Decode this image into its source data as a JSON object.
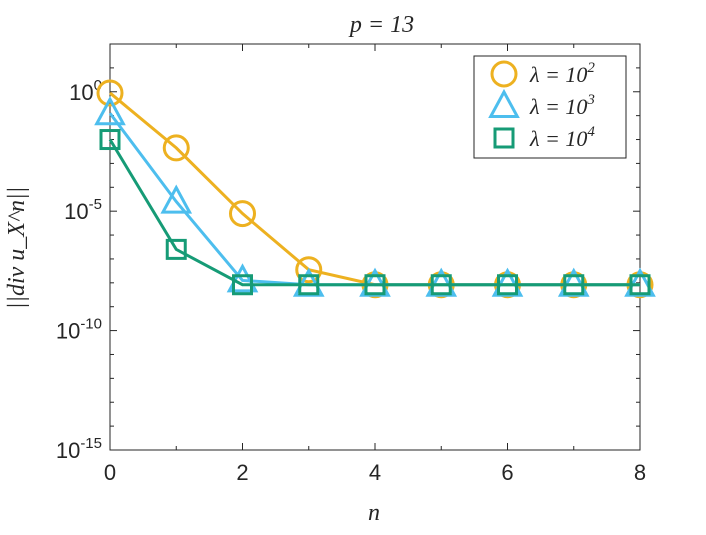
{
  "chart_data": {
    "type": "line",
    "title": "p = 13",
    "xlabel": "n",
    "ylabel": "||div u_X^n||",
    "x": [
      0,
      1,
      2,
      3,
      4,
      5,
      6,
      7,
      8
    ],
    "xlim": [
      0,
      8
    ],
    "ylim_exponent": [
      -15,
      2
    ],
    "yscale": "log",
    "grid": false,
    "legend_position": "top-right",
    "xticks": [
      "0",
      "2",
      "4",
      "6",
      "8"
    ],
    "xtick_values": [
      0,
      2,
      4,
      6,
      8
    ],
    "yticks": [
      {
        "base": "10",
        "exp": "0",
        "value": 0
      },
      {
        "base": "10",
        "exp": "-5",
        "value": -5
      },
      {
        "base": "10",
        "exp": "-10",
        "value": -10
      },
      {
        "base": "10",
        "exp": "-15",
        "value": -15
      }
    ],
    "series": [
      {
        "name": "λ = 10^2",
        "legend_base": "λ = 10",
        "legend_exp": "2",
        "marker": "circle",
        "color": "#EDB120",
        "values_log10": [
          -0.05,
          -2.35,
          -5.1,
          -7.45,
          -8.08,
          -8.08,
          -8.08,
          -8.08,
          -8.08
        ]
      },
      {
        "name": "λ = 10^3",
        "legend_base": "λ = 10",
        "legend_exp": "3",
        "marker": "triangle",
        "color": "#4DBEEE",
        "values_log10": [
          -0.9,
          -4.6,
          -7.9,
          -8.08,
          -8.08,
          -8.08,
          -8.08,
          -8.08,
          -8.08
        ]
      },
      {
        "name": "λ = 10^4",
        "legend_base": "λ = 10",
        "legend_exp": "4",
        "marker": "square",
        "color": "#169B76",
        "values_log10": [
          -2.0,
          -6.6,
          -8.08,
          -8.08,
          -8.08,
          -8.08,
          -8.08,
          -8.08,
          -8.08
        ]
      }
    ]
  }
}
